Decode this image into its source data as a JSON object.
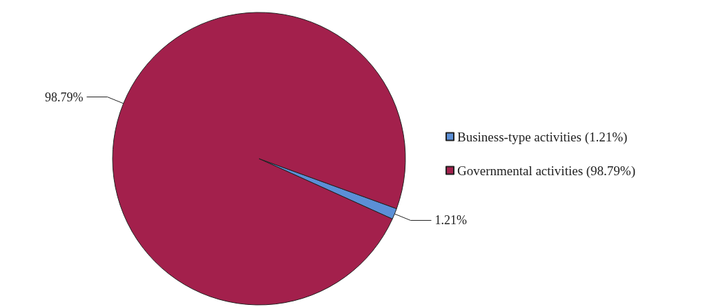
{
  "chart_data": {
    "type": "pie",
    "categories": [
      "Business-type activities (1.21%)",
      "Governmental activities (98.79%)"
    ],
    "values": [
      1.21,
      98.79
    ],
    "colors": [
      "#5b8fd6",
      "#a3204c"
    ],
    "value_labels": [
      "1.21%",
      "98.79%"
    ],
    "legend": "right"
  }
}
